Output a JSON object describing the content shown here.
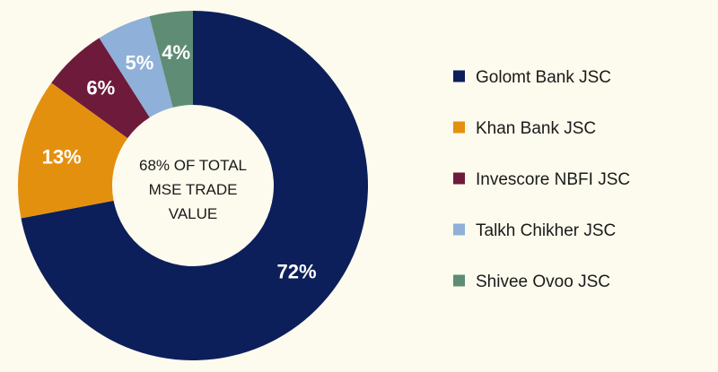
{
  "chart_data": {
    "type": "pie",
    "title": "",
    "center_text": [
      "68% OF TOTAL",
      "MSE TRADE",
      "VALUE"
    ],
    "categories": [
      "Golomt Bank JSC",
      "Khan Bank JSC",
      "Invescore NBFI JSC",
      "Talkh Chikher JSC",
      "Shivee Ovoo JSC"
    ],
    "values": [
      72,
      13,
      6,
      5,
      4
    ],
    "labels": [
      "72%",
      "13%",
      "6%",
      "5%",
      "4%"
    ],
    "colors": [
      "#0c1f5a",
      "#e4900f",
      "#6e1a3b",
      "#8fb0d8",
      "#5e8c74"
    ],
    "legend_position": "right"
  }
}
